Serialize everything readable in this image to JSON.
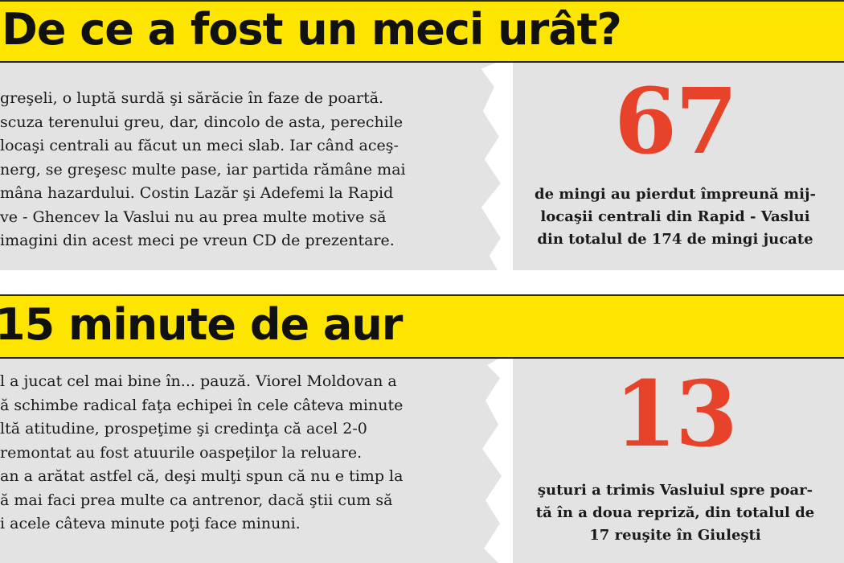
{
  "sections": [
    {
      "title": "De ce a fost un meci urât?",
      "body_lines": [
        "greşeli, o luptă surdă şi sărăcie în faze de poartă.",
        "scuza terenului greu, dar, dincolo de asta, perechile",
        "locaşi centrali au făcut un meci slab. Iar când aceş-",
        "nerg, se greşesc multe pase, iar partida rămâne mai",
        "mâna hazardului. Costin Lazăr şi Adefemi la Rapid",
        "ve - Ghencev la Vaslui nu au prea multe motive să",
        "imagini din acest meci pe vreun CD de prezentare."
      ],
      "stat_number": "67",
      "stat_caption_lines": [
        "de mingi au pierdut împreună mij-",
        "locaşii centrali din Rapid - Vaslui",
        "din totalul de 174 de mingi jucate"
      ]
    },
    {
      "title": "15 minute de aur",
      "body_lines": [
        "l a jucat cel mai bine în... pauză. Viorel Moldovan a",
        "ă schimbe radical faţa echipei în cele câteva minute",
        "ltă atitudine, prospeţime şi credinţa că acel 2-0",
        "remontat au fost atuurile oaspeţilor la reluare.",
        "an a arătat astfel că, deşi mulţi spun că nu e timp la",
        "ă mai faci prea multe ca antrenor, dacă ştii cum să",
        "i acele câteva minute poţi face minuni."
      ],
      "stat_number": "13",
      "stat_caption_lines": [
        "şuturi a trimis Vasluiul spre poar-",
        "tă în a doua repriză, din totalul de",
        "17 reuşite în Giuleşti"
      ]
    }
  ],
  "colors": {
    "header_bg": "#fde500",
    "panel_bg": "#e3e3e3",
    "stat_number": "#e7432a",
    "text": "#1a1a1a"
  }
}
